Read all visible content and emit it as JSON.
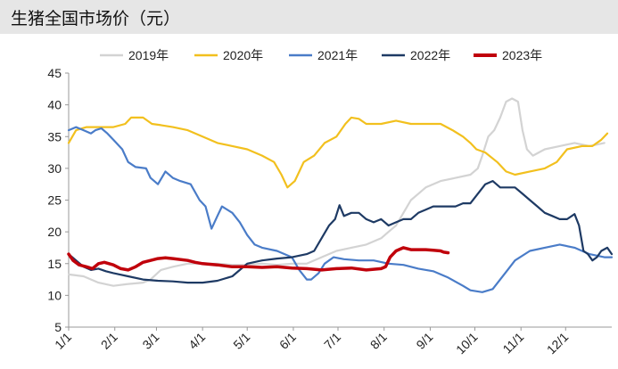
{
  "title": "生猪全国市场价（元）",
  "chart_data": {
    "type": "line",
    "title": "生猪全国市场价（元）",
    "xlabel": "",
    "ylabel": "",
    "ylim": [
      5,
      45
    ],
    "yticks": [
      5,
      10,
      15,
      20,
      25,
      30,
      35,
      40,
      45
    ],
    "xlim": [
      0,
      365
    ],
    "xticks": [
      {
        "label": "1/1",
        "day": 0
      },
      {
        "label": "2/1",
        "day": 31
      },
      {
        "label": "3/1",
        "day": 59
      },
      {
        "label": "4/1",
        "day": 90
      },
      {
        "label": "5/1",
        "day": 120
      },
      {
        "label": "6/1",
        "day": 151
      },
      {
        "label": "7/1",
        "day": 181
      },
      {
        "label": "8/1",
        "day": 212
      },
      {
        "label": "9/1",
        "day": 243
      },
      {
        "label": "10/1",
        "day": 273
      },
      {
        "label": "11/1",
        "day": 304
      },
      {
        "label": "12/1",
        "day": 334
      }
    ],
    "legend_position": "top",
    "grid": false,
    "series": [
      {
        "name": "2019年",
        "color": "#d3d3d3",
        "points": [
          [
            0,
            13.3
          ],
          [
            10,
            13
          ],
          [
            20,
            12
          ],
          [
            30,
            11.5
          ],
          [
            40,
            11.8
          ],
          [
            50,
            12
          ],
          [
            55,
            12.5
          ],
          [
            62,
            14
          ],
          [
            70,
            14.5
          ],
          [
            80,
            15
          ],
          [
            90,
            15
          ],
          [
            100,
            15
          ],
          [
            110,
            14.8
          ],
          [
            120,
            14.8
          ],
          [
            130,
            15
          ],
          [
            140,
            14.8
          ],
          [
            150,
            15
          ],
          [
            160,
            15
          ],
          [
            170,
            16
          ],
          [
            180,
            17
          ],
          [
            190,
            17.5
          ],
          [
            200,
            18
          ],
          [
            210,
            19
          ],
          [
            215,
            20
          ],
          [
            220,
            21
          ],
          [
            225,
            23
          ],
          [
            230,
            25
          ],
          [
            235,
            26
          ],
          [
            240,
            27
          ],
          [
            250,
            28
          ],
          [
            260,
            28.5
          ],
          [
            270,
            29
          ],
          [
            275,
            30
          ],
          [
            278,
            32
          ],
          [
            282,
            35
          ],
          [
            286,
            36
          ],
          [
            290,
            38
          ],
          [
            294,
            40.5
          ],
          [
            298,
            41
          ],
          [
            302,
            40.5
          ],
          [
            305,
            36
          ],
          [
            308,
            33
          ],
          [
            312,
            32
          ],
          [
            320,
            33
          ],
          [
            330,
            33.5
          ],
          [
            340,
            34
          ],
          [
            350,
            33.5
          ],
          [
            360,
            34
          ]
        ]
      },
      {
        "name": "2020年",
        "color": "#f2c01e",
        "points": [
          [
            0,
            34
          ],
          [
            5,
            36
          ],
          [
            12,
            36.5
          ],
          [
            20,
            36.5
          ],
          [
            30,
            36.5
          ],
          [
            38,
            37
          ],
          [
            42,
            38
          ],
          [
            50,
            38
          ],
          [
            56,
            37
          ],
          [
            62,
            36.8
          ],
          [
            70,
            36.5
          ],
          [
            80,
            36
          ],
          [
            90,
            35
          ],
          [
            100,
            34
          ],
          [
            110,
            33.5
          ],
          [
            120,
            33
          ],
          [
            130,
            32
          ],
          [
            138,
            31
          ],
          [
            143,
            29
          ],
          [
            147,
            27
          ],
          [
            152,
            28
          ],
          [
            158,
            31
          ],
          [
            165,
            32
          ],
          [
            172,
            34
          ],
          [
            180,
            35
          ],
          [
            186,
            37
          ],
          [
            190,
            38
          ],
          [
            195,
            37.8
          ],
          [
            200,
            37
          ],
          [
            210,
            37
          ],
          [
            220,
            37.5
          ],
          [
            230,
            37
          ],
          [
            240,
            37
          ],
          [
            250,
            37
          ],
          [
            258,
            36
          ],
          [
            265,
            35
          ],
          [
            270,
            34
          ],
          [
            274,
            33
          ],
          [
            280,
            32.5
          ],
          [
            288,
            31
          ],
          [
            294,
            29.5
          ],
          [
            300,
            29
          ],
          [
            310,
            29.5
          ],
          [
            320,
            30
          ],
          [
            328,
            31
          ],
          [
            335,
            33
          ],
          [
            345,
            33.5
          ],
          [
            352,
            33.5
          ],
          [
            358,
            34.5
          ],
          [
            362,
            35.5
          ]
        ]
      },
      {
        "name": "2021年",
        "color": "#4a7cc8",
        "points": [
          [
            0,
            36
          ],
          [
            5,
            36.5
          ],
          [
            10,
            36
          ],
          [
            15,
            35.5
          ],
          [
            18,
            36
          ],
          [
            22,
            36.3
          ],
          [
            26,
            35.5
          ],
          [
            30,
            34.5
          ],
          [
            36,
            33
          ],
          [
            40,
            31
          ],
          [
            45,
            30.2
          ],
          [
            52,
            30
          ],
          [
            55,
            28.5
          ],
          [
            60,
            27.5
          ],
          [
            65,
            29.5
          ],
          [
            70,
            28.5
          ],
          [
            75,
            28
          ],
          [
            82,
            27.5
          ],
          [
            88,
            25
          ],
          [
            92,
            24
          ],
          [
            96,
            20.5
          ],
          [
            100,
            22.5
          ],
          [
            103,
            24
          ],
          [
            110,
            23
          ],
          [
            115,
            21.5
          ],
          [
            120,
            19.5
          ],
          [
            125,
            18
          ],
          [
            130,
            17.5
          ],
          [
            140,
            17
          ],
          [
            150,
            16
          ],
          [
            155,
            14
          ],
          [
            160,
            12.5
          ],
          [
            163,
            12.5
          ],
          [
            168,
            13.5
          ],
          [
            172,
            15
          ],
          [
            178,
            16
          ],
          [
            185,
            15.7
          ],
          [
            195,
            15.5
          ],
          [
            205,
            15.5
          ],
          [
            215,
            15
          ],
          [
            225,
            14.8
          ],
          [
            235,
            14.2
          ],
          [
            245,
            13.8
          ],
          [
            255,
            12.8
          ],
          [
            265,
            11.5
          ],
          [
            270,
            10.8
          ],
          [
            278,
            10.5
          ],
          [
            285,
            11
          ],
          [
            290,
            12.5
          ],
          [
            295,
            14
          ],
          [
            300,
            15.5
          ],
          [
            310,
            17
          ],
          [
            320,
            17.5
          ],
          [
            330,
            18
          ],
          [
            340,
            17.5
          ],
          [
            350,
            16.5
          ],
          [
            360,
            16
          ],
          [
            365,
            16
          ]
        ]
      },
      {
        "name": "2022年",
        "color": "#1e3a64",
        "points": [
          [
            0,
            16.5
          ],
          [
            5,
            15.5
          ],
          [
            10,
            14.5
          ],
          [
            15,
            14
          ],
          [
            20,
            14.2
          ],
          [
            25,
            13.8
          ],
          [
            30,
            13.5
          ],
          [
            40,
            13
          ],
          [
            50,
            12.5
          ],
          [
            60,
            12.3
          ],
          [
            70,
            12.2
          ],
          [
            80,
            12
          ],
          [
            90,
            12
          ],
          [
            100,
            12.3
          ],
          [
            110,
            13
          ],
          [
            115,
            14
          ],
          [
            120,
            15
          ],
          [
            130,
            15.5
          ],
          [
            140,
            15.8
          ],
          [
            150,
            16
          ],
          [
            160,
            16.5
          ],
          [
            165,
            17
          ],
          [
            170,
            19
          ],
          [
            175,
            21
          ],
          [
            179,
            22
          ],
          [
            182,
            24.2
          ],
          [
            185,
            22.5
          ],
          [
            190,
            23
          ],
          [
            195,
            23
          ],
          [
            200,
            22
          ],
          [
            205,
            21.5
          ],
          [
            210,
            22
          ],
          [
            215,
            21
          ],
          [
            220,
            21.5
          ],
          [
            225,
            22
          ],
          [
            230,
            22
          ],
          [
            235,
            23
          ],
          [
            240,
            23.5
          ],
          [
            245,
            24
          ],
          [
            250,
            24
          ],
          [
            255,
            24
          ],
          [
            260,
            24
          ],
          [
            265,
            24.5
          ],
          [
            270,
            24.5
          ],
          [
            275,
            26
          ],
          [
            280,
            27.5
          ],
          [
            285,
            28
          ],
          [
            290,
            27
          ],
          [
            295,
            27
          ],
          [
            300,
            27
          ],
          [
            305,
            26
          ],
          [
            310,
            25
          ],
          [
            315,
            24
          ],
          [
            320,
            23
          ],
          [
            325,
            22.5
          ],
          [
            330,
            22
          ],
          [
            335,
            22
          ],
          [
            340,
            22.8
          ],
          [
            343,
            21
          ],
          [
            346,
            17
          ],
          [
            349,
            16.5
          ],
          [
            352,
            15.5
          ],
          [
            355,
            16
          ],
          [
            358,
            17
          ],
          [
            362,
            17.5
          ],
          [
            365,
            16.5
          ]
        ]
      },
      {
        "name": "2023年",
        "color": "#c0000b",
        "points": [
          [
            0,
            16.5
          ],
          [
            3,
            15.5
          ],
          [
            7,
            14.8
          ],
          [
            12,
            14.5
          ],
          [
            16,
            14.2
          ],
          [
            20,
            15
          ],
          [
            24,
            15.2
          ],
          [
            30,
            14.8
          ],
          [
            35,
            14.2
          ],
          [
            40,
            14
          ],
          [
            45,
            14.5
          ],
          [
            50,
            15.2
          ],
          [
            55,
            15.5
          ],
          [
            60,
            15.8
          ],
          [
            65,
            15.9
          ],
          [
            70,
            15.8
          ],
          [
            80,
            15.5
          ],
          [
            85,
            15.2
          ],
          [
            90,
            15
          ],
          [
            100,
            14.8
          ],
          [
            110,
            14.5
          ],
          [
            120,
            14.5
          ],
          [
            130,
            14.4
          ],
          [
            140,
            14.5
          ],
          [
            150,
            14.3
          ],
          [
            160,
            14.2
          ],
          [
            170,
            14
          ],
          [
            180,
            14.2
          ],
          [
            190,
            14.3
          ],
          [
            200,
            14
          ],
          [
            210,
            14.2
          ],
          [
            213,
            14.5
          ],
          [
            216,
            16
          ],
          [
            220,
            17
          ],
          [
            225,
            17.5
          ],
          [
            230,
            17.2
          ],
          [
            240,
            17.2
          ],
          [
            245,
            17.1
          ],
          [
            250,
            17
          ],
          [
            252,
            16.8
          ],
          [
            255,
            16.7
          ]
        ]
      }
    ]
  }
}
